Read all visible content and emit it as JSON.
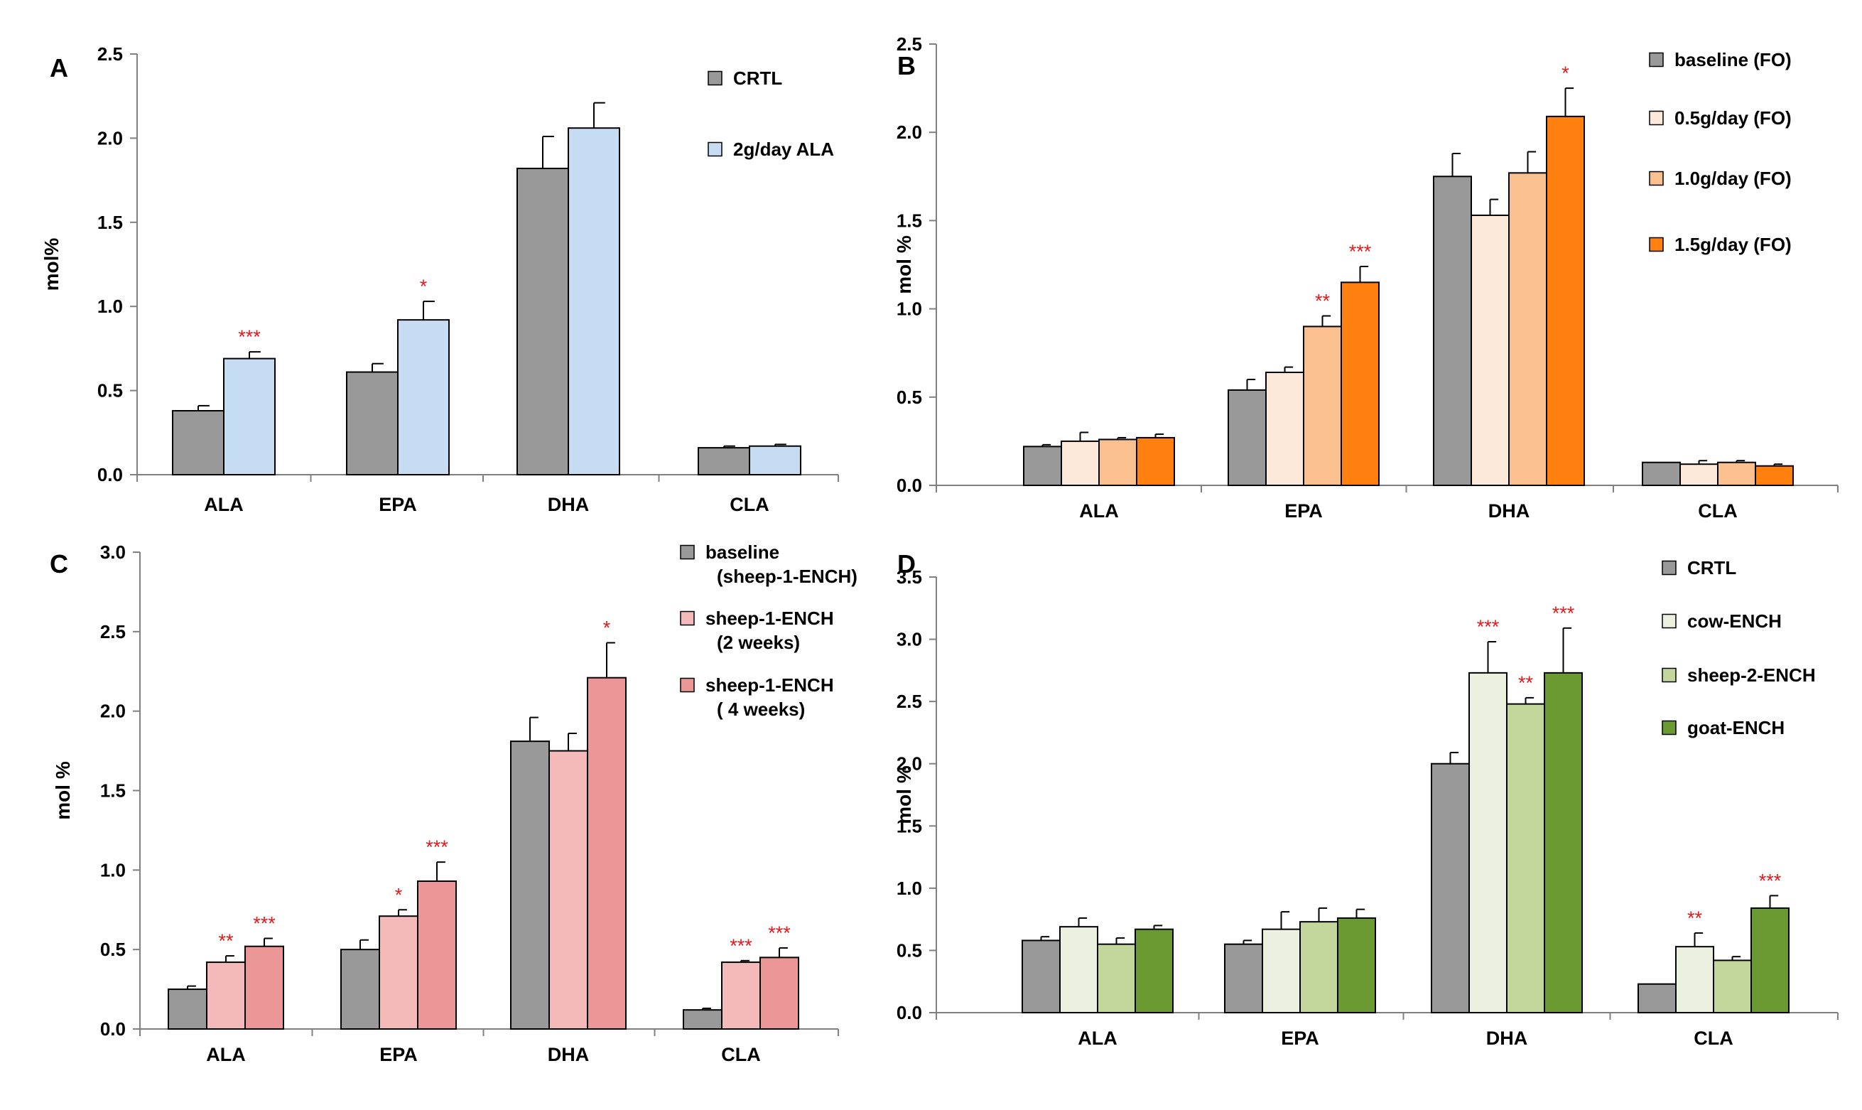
{
  "chart_data": [
    {
      "type": "bar",
      "panel": "A",
      "ylabel": "mol%",
      "ylim": [
        0,
        2.5
      ],
      "ytick_step": 0.5,
      "categories": [
        "ALA",
        "EPA",
        "DHA",
        "CLA"
      ],
      "series": [
        {
          "name": "CRTL",
          "color": "#999999",
          "values": [
            0.38,
            0.61,
            1.82,
            0.16
          ],
          "errors": [
            0.03,
            0.05,
            0.19,
            0.01
          ],
          "sig": [
            "",
            "",
            "",
            ""
          ]
        },
        {
          "name": "2g/day ALA",
          "color": "#c6dcf2",
          "values": [
            0.69,
            0.92,
            2.06,
            0.17
          ],
          "errors": [
            0.04,
            0.11,
            0.15,
            0.01
          ],
          "sig": [
            "***",
            "*",
            "",
            ""
          ]
        }
      ]
    },
    {
      "type": "bar",
      "panel": "B",
      "ylabel": "mol %",
      "ylim": [
        0,
        2.5
      ],
      "ytick_step": 0.5,
      "categories": [
        "ALA",
        "EPA",
        "DHA",
        "CLA"
      ],
      "series": [
        {
          "name": "baseline (FO)",
          "color": "#999999",
          "values": [
            0.22,
            0.54,
            1.75,
            0.13
          ],
          "errors": [
            0.01,
            0.06,
            0.13,
            0.0
          ],
          "sig": [
            "",
            "",
            "",
            ""
          ]
        },
        {
          "name": "0.5g/day (FO)",
          "color": "#fde9d9",
          "values": [
            0.25,
            0.64,
            1.53,
            0.12
          ],
          "errors": [
            0.05,
            0.03,
            0.09,
            0.02
          ],
          "sig": [
            "",
            "",
            "",
            ""
          ]
        },
        {
          "name": "1.0g/day (FO)",
          "color": "#fac090",
          "values": [
            0.26,
            0.9,
            1.77,
            0.13
          ],
          "errors": [
            0.01,
            0.06,
            0.12,
            0.01
          ],
          "sig": [
            "",
            "**",
            "",
            ""
          ]
        },
        {
          "name": "1.5g/day (FO)",
          "color": "#ff7f0f",
          "values": [
            0.27,
            1.15,
            2.09,
            0.11
          ],
          "errors": [
            0.02,
            0.09,
            0.16,
            0.01
          ],
          "sig": [
            "",
            "***",
            "*",
            ""
          ]
        }
      ]
    },
    {
      "type": "bar",
      "panel": "C",
      "ylabel": "mol %",
      "ylim": [
        0,
        3.0
      ],
      "ytick_step": 0.5,
      "categories": [
        "ALA",
        "EPA",
        "DHA",
        "CLA"
      ],
      "series": [
        {
          "name": "baseline (sheep-1-ENCH)",
          "legend_lines": [
            "baseline",
            "(sheep-1-ENCH)"
          ],
          "color": "#999999",
          "values": [
            0.25,
            0.5,
            1.81,
            0.12
          ],
          "errors": [
            0.02,
            0.06,
            0.15,
            0.01
          ],
          "sig": [
            "",
            "",
            "",
            ""
          ]
        },
        {
          "name": "sheep-1-ENCH (2 weeks)",
          "legend_lines": [
            "sheep-1-ENCH",
            "(2 weeks)"
          ],
          "color": "#f4baba",
          "values": [
            0.42,
            0.71,
            1.75,
            0.42
          ],
          "errors": [
            0.04,
            0.04,
            0.11,
            0.01
          ],
          "sig": [
            "**",
            "*",
            "",
            "***"
          ]
        },
        {
          "name": "sheep-1-ENCH ( 4 weeks)",
          "legend_lines": [
            "sheep-1-ENCH",
            "( 4 weeks)"
          ],
          "color": "#ec9797",
          "values": [
            0.52,
            0.93,
            2.21,
            0.45
          ],
          "errors": [
            0.05,
            0.12,
            0.22,
            0.06
          ],
          "sig": [
            "***",
            "***",
            "*",
            "***"
          ]
        }
      ]
    },
    {
      "type": "bar",
      "panel": "D",
      "ylabel": "mol %",
      "ylim": [
        0,
        3.5
      ],
      "ytick_step": 0.5,
      "categories": [
        "ALA",
        "EPA",
        "DHA",
        "CLA"
      ],
      "series": [
        {
          "name": "CRTL",
          "color": "#999999",
          "values": [
            0.58,
            0.55,
            2.0,
            0.23
          ],
          "errors": [
            0.03,
            0.03,
            0.09,
            0.0
          ],
          "sig": [
            "",
            "",
            "",
            ""
          ]
        },
        {
          "name": "cow-ENCH",
          "color": "#ebf1de",
          "values": [
            0.69,
            0.67,
            2.73,
            0.53
          ],
          "errors": [
            0.07,
            0.14,
            0.25,
            0.11
          ],
          "sig": [
            "",
            "",
            "***",
            "**"
          ]
        },
        {
          "name": "sheep-2-ENCH",
          "color": "#c3d69b",
          "values": [
            0.55,
            0.73,
            2.48,
            0.42
          ],
          "errors": [
            0.05,
            0.11,
            0.05,
            0.03
          ],
          "sig": [
            "",
            "",
            "**",
            ""
          ]
        },
        {
          "name": "goat-ENCH",
          "color": "#6b9a33",
          "values": [
            0.67,
            0.76,
            2.73,
            0.84
          ],
          "errors": [
            0.03,
            0.07,
            0.36,
            0.1
          ],
          "sig": [
            "",
            "",
            "***",
            "***"
          ]
        }
      ]
    }
  ]
}
